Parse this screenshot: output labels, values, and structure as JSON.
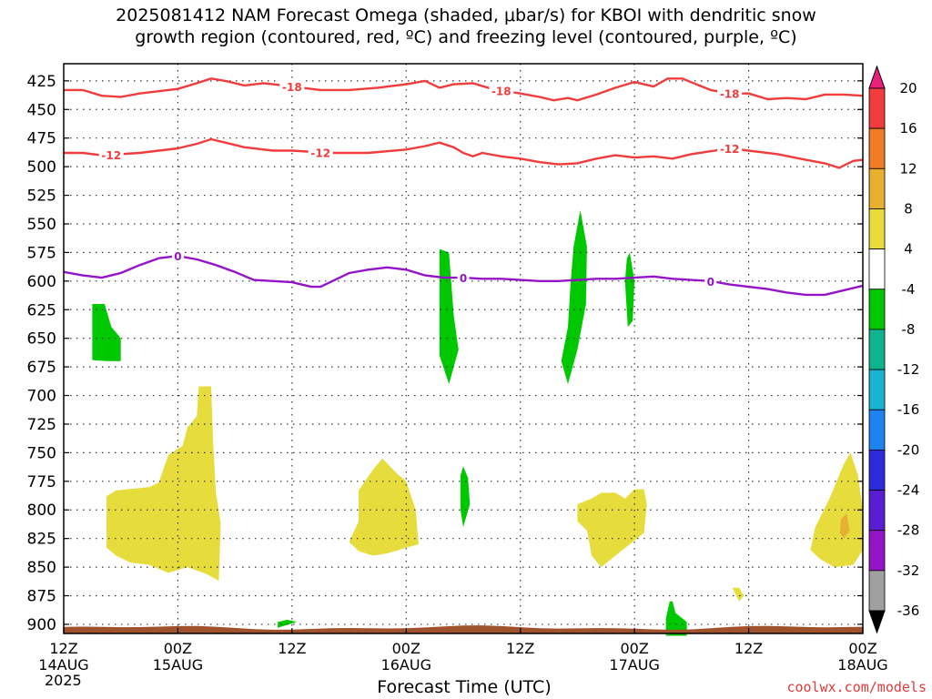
{
  "title": {
    "line1": "2025081412 NAM Forecast Omega (shaded, μbar/s) for KBOI with dendritic snow",
    "line2": "growth region (contoured, red, ºC) and freezing level (contoured, purple, ºC)"
  },
  "xlabel": "Forecast Time (UTC)",
  "credit": "coolwx.com/models",
  "year": "2025",
  "chart_data": {
    "type": "heatmap",
    "y_ticks": [
      425,
      450,
      475,
      500,
      525,
      550,
      575,
      600,
      625,
      650,
      675,
      700,
      725,
      750,
      775,
      800,
      825,
      850,
      875,
      900
    ],
    "ylim": [
      410,
      908
    ],
    "xlim_hours": [
      0,
      84
    ],
    "x_ticks": [
      {
        "hour": 0,
        "line1": "12Z",
        "line2": "14AUG"
      },
      {
        "hour": 12,
        "line1": "00Z",
        "line2": "15AUG"
      },
      {
        "hour": 24,
        "line1": "12Z",
        "line2": ""
      },
      {
        "hour": 36,
        "line1": "00Z",
        "line2": "16AUG"
      },
      {
        "hour": 48,
        "line1": "12Z",
        "line2": ""
      },
      {
        "hour": 60,
        "line1": "00Z",
        "line2": "17AUG"
      },
      {
        "hour": 72,
        "line1": "12Z",
        "line2": ""
      },
      {
        "hour": 84,
        "line1": "00Z",
        "line2": "18AUG"
      }
    ],
    "colorbar": {
      "labels": [
        "20",
        "16",
        "12",
        "8",
        "4",
        "-4",
        "-8",
        "-12",
        "-16",
        "-20",
        "-24",
        "-28",
        "-32",
        "-36"
      ],
      "colors": [
        "#e8207a",
        "#f03c3c",
        "#f07c28",
        "#e8b030",
        "#e8dc3c",
        "#ffffff",
        "#00c800",
        "#10b48c",
        "#1ab4d2",
        "#1e82f0",
        "#2c2cdc",
        "#5a1ed2",
        "#9614c8",
        "#a0a0a0",
        "#000000"
      ]
    },
    "contours": [
      {
        "series": "dendritic snow growth",
        "value": -18,
        "label": "-18",
        "color": "#f03c3c",
        "x": [
          0,
          2,
          4,
          6,
          8,
          10,
          12,
          14,
          15.5,
          17,
          19,
          21,
          22,
          24,
          27,
          30,
          33,
          36,
          38,
          39.5,
          41,
          43,
          45,
          48,
          50,
          51.5,
          53,
          54,
          56,
          58,
          60,
          62,
          63.5,
          65,
          66.5,
          68,
          70,
          72,
          74,
          76,
          78,
          80,
          82,
          84
        ],
        "y": [
          433,
          433,
          438,
          439,
          436,
          434,
          432,
          427,
          423,
          425,
          429,
          427,
          428,
          430,
          433,
          433,
          431,
          428,
          425,
          431,
          428,
          427,
          432,
          436,
          439,
          442,
          440,
          442,
          437,
          431,
          426,
          430,
          423,
          423,
          428,
          433,
          436,
          436,
          441,
          440,
          441,
          437,
          437,
          438
        ]
      },
      {
        "series": "dendritic snow growth",
        "value": -12,
        "label": "-12",
        "color": "#f03c3c",
        "x": [
          0,
          2,
          4,
          6,
          8,
          10,
          12,
          14,
          15.5,
          17,
          19,
          22,
          24,
          28,
          32,
          36,
          38,
          39.5,
          41,
          42,
          43,
          44,
          46,
          48,
          50,
          52,
          54,
          56,
          58,
          60,
          62,
          64,
          66,
          70,
          72,
          75,
          78,
          80,
          81.5,
          83,
          84
        ],
        "y": [
          488,
          488,
          490,
          489,
          488,
          486,
          484,
          480,
          476,
          479,
          483,
          486,
          486,
          488,
          488,
          485,
          482,
          479,
          483,
          488,
          491,
          488,
          491,
          493,
          496,
          498,
          497,
          493,
          490,
          492,
          491,
          493,
          489,
          484,
          486,
          489,
          494,
          497,
          501,
          495,
          494
        ]
      },
      {
        "series": "freezing level",
        "value": 0,
        "label": "0",
        "color": "#9614c8",
        "x": [
          0,
          2,
          4,
          6,
          8,
          10,
          12,
          14,
          16,
          18,
          20,
          22,
          24,
          26,
          27,
          28,
          30,
          32,
          34,
          36,
          38,
          40,
          42,
          44,
          46,
          48,
          50,
          52,
          54,
          56,
          58,
          60,
          62,
          64,
          66,
          68,
          70,
          72,
          74,
          76,
          78,
          80,
          82,
          84
        ],
        "y": [
          592,
          595,
          597,
          593,
          586,
          580,
          578,
          581,
          586,
          592,
          599,
          600,
          601,
          605,
          605,
          601,
          593,
          590,
          588,
          590,
          595,
          597,
          597,
          598,
          598,
          599,
          600,
          600,
          599,
          598,
          598,
          597,
          596,
          598,
          599,
          600,
          603,
          605,
          607,
          610,
          612,
          612,
          608,
          604
        ]
      }
    ],
    "omega_regions": [
      {
        "value_class": "-4 to -8",
        "color": "#00c800",
        "points": [
          [
            3,
            620
          ],
          [
            4.3,
            620
          ],
          [
            5,
            640
          ],
          [
            6,
            650
          ],
          [
            6,
            670
          ],
          [
            4.5,
            670
          ],
          [
            3,
            669
          ]
        ]
      },
      {
        "value_class": "-4 to -8",
        "color": "#00c800",
        "points": [
          [
            39.5,
            572
          ],
          [
            40.5,
            575
          ],
          [
            41,
            630
          ],
          [
            41.5,
            660
          ],
          [
            40.5,
            690
          ],
          [
            39.5,
            665
          ],
          [
            39.5,
            600
          ]
        ]
      },
      {
        "value_class": "-4 to -8",
        "color": "#00c800",
        "points": [
          [
            54.3,
            538
          ],
          [
            55,
            570
          ],
          [
            54.9,
            620
          ],
          [
            54,
            660
          ],
          [
            53,
            690
          ],
          [
            52.3,
            670
          ],
          [
            53,
            640
          ],
          [
            53.3,
            600
          ],
          [
            53.6,
            570
          ]
        ]
      },
      {
        "value_class": "-4 to -8",
        "color": "#00c800",
        "points": [
          [
            59.5,
            575
          ],
          [
            60,
            600
          ],
          [
            59.8,
            635
          ],
          [
            59.3,
            640
          ],
          [
            59,
            600
          ],
          [
            59.2,
            580
          ]
        ]
      },
      {
        "value_class": "-4 to -8",
        "color": "#00c800",
        "points": [
          [
            42,
            762
          ],
          [
            42.5,
            772
          ],
          [
            42.7,
            795
          ],
          [
            42,
            815
          ],
          [
            41.7,
            800
          ],
          [
            41.7,
            770
          ]
        ]
      },
      {
        "value_class": "-4 to -8",
        "color": "#00c800",
        "points": [
          [
            63.7,
            880
          ],
          [
            64,
            880
          ],
          [
            64.3,
            890
          ],
          [
            65.5,
            898
          ],
          [
            65.5,
            910
          ],
          [
            63.3,
            910
          ],
          [
            63.3,
            895
          ]
        ]
      },
      {
        "value_class": "-4 to -8",
        "color": "#00c800",
        "points": [
          [
            22.5,
            898
          ],
          [
            23.5,
            896
          ],
          [
            24.5,
            898
          ],
          [
            22.5,
            903
          ]
        ]
      },
      {
        "value_class": "4 to 8",
        "color": "#e6dc3c",
        "points": [
          [
            4.5,
            788
          ],
          [
            5.5,
            783
          ],
          [
            9,
            780
          ],
          [
            10,
            776
          ],
          [
            11,
            752
          ],
          [
            12.5,
            744
          ],
          [
            13,
            728
          ],
          [
            14,
            718
          ],
          [
            14.2,
            692
          ],
          [
            15.5,
            692
          ],
          [
            15.7,
            740
          ],
          [
            16,
            785
          ],
          [
            16.5,
            812
          ],
          [
            16.3,
            862
          ],
          [
            15,
            856
          ],
          [
            13,
            850
          ],
          [
            11,
            855
          ],
          [
            9,
            848
          ],
          [
            7,
            846
          ],
          [
            5.5,
            840
          ],
          [
            4.5,
            833
          ]
        ]
      },
      {
        "value_class": "4 to 8",
        "color": "#e6dc3c",
        "points": [
          [
            31,
            783
          ],
          [
            32.5,
            765
          ],
          [
            33.5,
            755
          ],
          [
            35,
            768
          ],
          [
            36,
            775
          ],
          [
            37,
            800
          ],
          [
            37.3,
            830
          ],
          [
            36,
            833
          ],
          [
            34,
            838
          ],
          [
            32.5,
            840
          ],
          [
            31,
            836
          ],
          [
            30,
            828
          ],
          [
            31,
            810
          ]
        ]
      },
      {
        "value_class": "4 to 8",
        "color": "#e6dc3c",
        "points": [
          [
            54,
            795
          ],
          [
            55.5,
            790
          ],
          [
            56.5,
            785
          ],
          [
            58,
            785
          ],
          [
            59,
            790
          ],
          [
            60,
            782
          ],
          [
            61,
            782
          ],
          [
            61.3,
            795
          ],
          [
            61,
            820
          ],
          [
            59.5,
            830
          ],
          [
            58,
            840
          ],
          [
            56.5,
            850
          ],
          [
            55.5,
            840
          ],
          [
            55,
            818
          ],
          [
            54,
            810
          ]
        ]
      },
      {
        "value_class": "4 to 8",
        "color": "#e6dc3c",
        "points": [
          [
            80.5,
            790
          ],
          [
            82,
            760
          ],
          [
            82.7,
            750
          ],
          [
            83.5,
            770
          ],
          [
            84,
            800
          ],
          [
            84,
            835
          ],
          [
            83,
            848
          ],
          [
            81,
            850
          ],
          [
            79.5,
            843
          ],
          [
            78.5,
            835
          ],
          [
            79,
            815
          ]
        ]
      },
      {
        "value_class": "4 to 8",
        "color": "#e6dc3c",
        "points": [
          [
            70.3,
            868
          ],
          [
            71,
            868
          ],
          [
            71.5,
            875
          ],
          [
            71,
            880
          ]
        ]
      },
      {
        "value_class": "8 to 12",
        "color": "#e8b030",
        "points": [
          [
            81.7,
            808
          ],
          [
            82.3,
            803
          ],
          [
            82.6,
            818
          ],
          [
            82,
            825
          ],
          [
            81.6,
            820
          ]
        ]
      }
    ]
  }
}
